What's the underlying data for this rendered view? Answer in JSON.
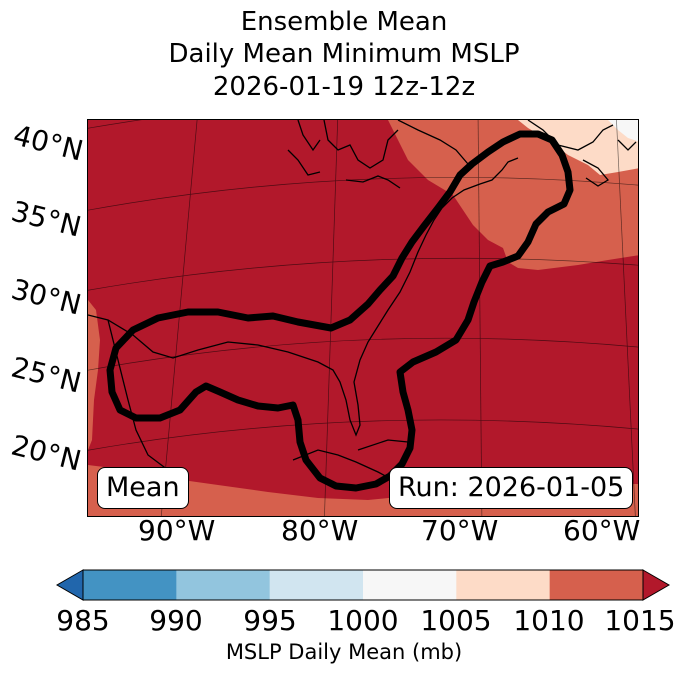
{
  "title": {
    "line1": "Ensemble Mean",
    "line2": "Daily Mean Minimum MSLP",
    "line3": "2026-01-19 12z-12z"
  },
  "map": {
    "lat_labels": [
      "40°N",
      "35°N",
      "30°N",
      "25°N",
      "20°N"
    ],
    "lon_labels": [
      "90°W",
      "80°W",
      "70°W",
      "60°W"
    ],
    "mean_box": "Mean",
    "run_box": "Run: 2026-01-05",
    "colors": {
      "dark_red": "#b2182b",
      "red": "#d6604d",
      "light_salmon": "#fddbc7",
      "pale": "#f7f7f7",
      "coast": "#000000",
      "contour": "#000000"
    }
  },
  "colorbar": {
    "label": "MSLP Daily Mean (mb)",
    "ticks": [
      "985",
      "990",
      "995",
      "1000",
      "1005",
      "1010",
      "1015"
    ],
    "colors": [
      "#4393c3",
      "#92c5de",
      "#d1e5f0",
      "#f7f7f7",
      "#fddbc7",
      "#d6604d"
    ],
    "extend_low_color": "#2166ac",
    "extend_high_color": "#b2182b"
  }
}
